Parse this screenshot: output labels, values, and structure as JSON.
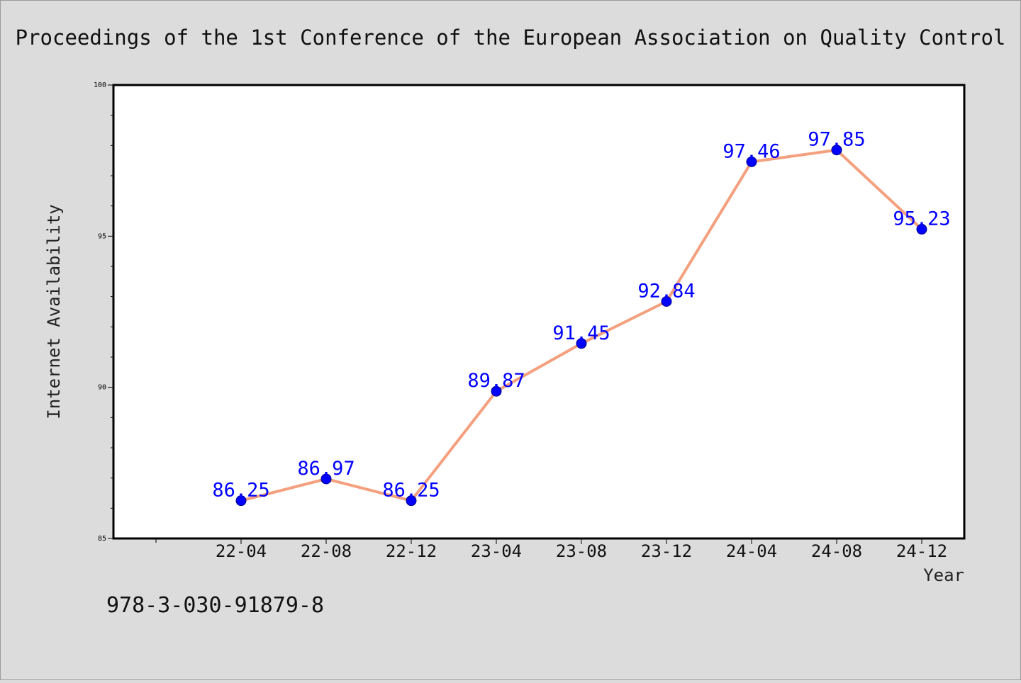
{
  "chart_data": {
    "type": "line",
    "title": "Proceedings of the 1st Conference of the European Association on Quality Control",
    "xlabel": "Year",
    "ylabel": "Internet Availability",
    "categories": [
      "22-04",
      "22-08",
      "22-12",
      "23-04",
      "23-08",
      "23-12",
      "24-04",
      "24-08",
      "24-12"
    ],
    "series": [
      {
        "values": [
          86.25,
          86.97,
          86.25,
          89.87,
          91.45,
          92.84,
          97.46,
          97.85,
          95.23
        ],
        "line_color": "#f4a07e",
        "marker_color": "#0000ff"
      }
    ],
    "data_labels": [
      "86.25",
      "86.97",
      "86.25",
      "89.87",
      "91.45",
      "92.84",
      "97.46",
      "97.85",
      "95.23"
    ],
    "ylim": [
      85,
      100
    ],
    "y_ticks": [
      "85",
      "90",
      "95",
      "100"
    ],
    "y_tick_values": [
      85,
      90,
      95,
      100
    ],
    "grid": false,
    "label_color": "#0000ff",
    "background": "#dcdcdc",
    "plot_background": "#ffffff"
  },
  "footer_text": "978-3-030-91879-8"
}
